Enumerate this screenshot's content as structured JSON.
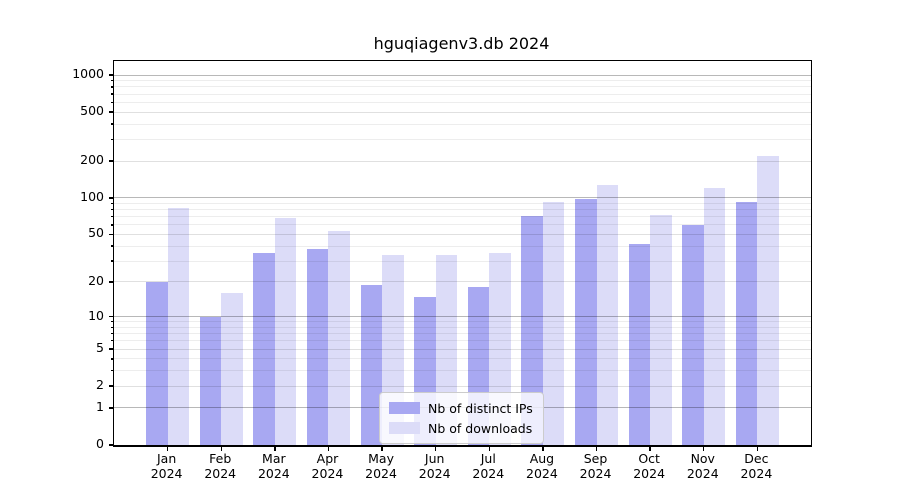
{
  "chart_data": {
    "type": "bar",
    "title": "hguqiagenv3.db 2024",
    "categories": [
      "Jan 2024",
      "Feb 2024",
      "Mar 2024",
      "Apr 2024",
      "May 2024",
      "Jun 2024",
      "Jul 2024",
      "Aug 2024",
      "Sep 2024",
      "Oct 2024",
      "Nov 2024",
      "Dec 2024"
    ],
    "series": [
      {
        "name": "Nb of distinct IPs",
        "color": "#a8a8f2",
        "values": [
          20,
          10,
          35,
          38,
          19,
          15,
          18,
          71,
          97,
          42,
          60,
          93
        ]
      },
      {
        "name": "Nb of downloads",
        "color": "#dcdcf8",
        "values": [
          82,
          16,
          68,
          53,
          34,
          34,
          35,
          93,
          128,
          72,
          121,
          220
        ]
      }
    ],
    "yscale": "log1p",
    "ylim": [
      0,
      1300
    ],
    "y_ticks": [
      1000,
      500,
      200,
      100,
      50,
      20,
      10,
      5,
      2,
      1,
      0
    ],
    "y_minor_ticks": [
      900,
      800,
      700,
      600,
      400,
      300,
      90,
      80,
      70,
      60,
      40,
      30,
      9,
      8,
      7,
      6,
      4,
      3
    ],
    "grid": true,
    "legend_position": "lower center"
  }
}
